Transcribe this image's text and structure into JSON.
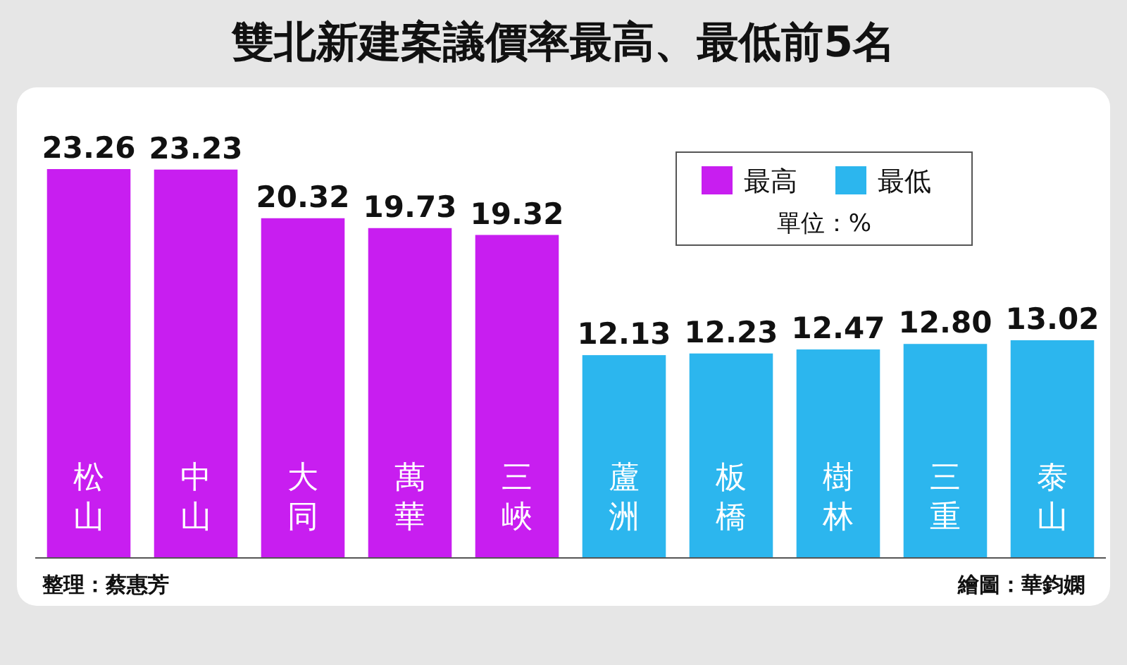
{
  "chart_data": {
    "type": "bar",
    "title": "雙北新建案議價率最高、最低前5名",
    "categories": [
      "松山",
      "中山",
      "大同",
      "萬華",
      "三峽",
      "蘆洲",
      "板橋",
      "樹林",
      "三重",
      "泰山"
    ],
    "series": [
      {
        "name": "最高",
        "color": "#c81ef0",
        "values": [
          23.26,
          23.23,
          20.32,
          19.73,
          19.32,
          null,
          null,
          null,
          null,
          null
        ]
      },
      {
        "name": "最低",
        "color": "#2cb6ee",
        "values": [
          null,
          null,
          null,
          null,
          null,
          12.13,
          12.23,
          12.47,
          12.8,
          13.02
        ],
        "value_labels": [
          null,
          null,
          null,
          null,
          null,
          "12.13",
          "12.23",
          "12.47",
          "12.80",
          "13.02"
        ]
      }
    ],
    "data_labels": true,
    "legend": "top right",
    "annotations": [
      "單位：%",
      "整理：蔡惠芳",
      "繪圖：華鈞嫻"
    ]
  }
}
